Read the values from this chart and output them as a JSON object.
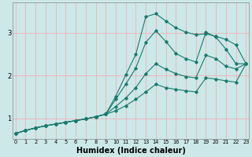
{
  "xlabel": "Humidex (Indice chaleur)",
  "background_color": "#cce8e8",
  "grid_color": "#f0b0b8",
  "line_color": "#1a7a6e",
  "xlim": [
    -0.3,
    23.3
  ],
  "ylim": [
    0.52,
    3.72
  ],
  "x_ticks": [
    0,
    1,
    2,
    3,
    4,
    5,
    6,
    7,
    8,
    9,
    10,
    11,
    12,
    13,
    14,
    15,
    16,
    17,
    18,
    19,
    20,
    21,
    22,
    23
  ],
  "y_ticks": [
    1,
    2,
    3
  ],
  "curves": [
    [
      0.65,
      0.72,
      0.78,
      0.83,
      0.87,
      0.91,
      0.95,
      0.99,
      1.04,
      1.1,
      1.52,
      2.02,
      2.5,
      3.38,
      3.45,
      3.28,
      3.12,
      3.02,
      2.96,
      2.98,
      2.92,
      2.85,
      2.72,
      2.28
    ],
    [
      0.65,
      0.72,
      0.78,
      0.83,
      0.87,
      0.91,
      0.95,
      0.99,
      1.04,
      1.1,
      1.45,
      1.8,
      2.18,
      2.78,
      3.05,
      2.8,
      2.52,
      2.4,
      2.32,
      3.02,
      2.9,
      2.62,
      2.28,
      2.28
    ],
    [
      0.65,
      0.72,
      0.78,
      0.83,
      0.87,
      0.91,
      0.95,
      0.99,
      1.04,
      1.1,
      1.28,
      1.48,
      1.72,
      2.05,
      2.28,
      2.15,
      2.05,
      1.98,
      1.95,
      2.48,
      2.4,
      2.22,
      2.16,
      2.28
    ],
    [
      0.65,
      0.72,
      0.78,
      0.83,
      0.87,
      0.91,
      0.95,
      0.99,
      1.04,
      1.1,
      1.18,
      1.3,
      1.45,
      1.62,
      1.8,
      1.72,
      1.68,
      1.65,
      1.62,
      1.95,
      1.92,
      1.88,
      1.85,
      2.28
    ]
  ],
  "xlabel_fontsize": 7,
  "xlabel_fontweight": "bold",
  "xtick_fontsize": 4.8,
  "ytick_fontsize": 6.0
}
